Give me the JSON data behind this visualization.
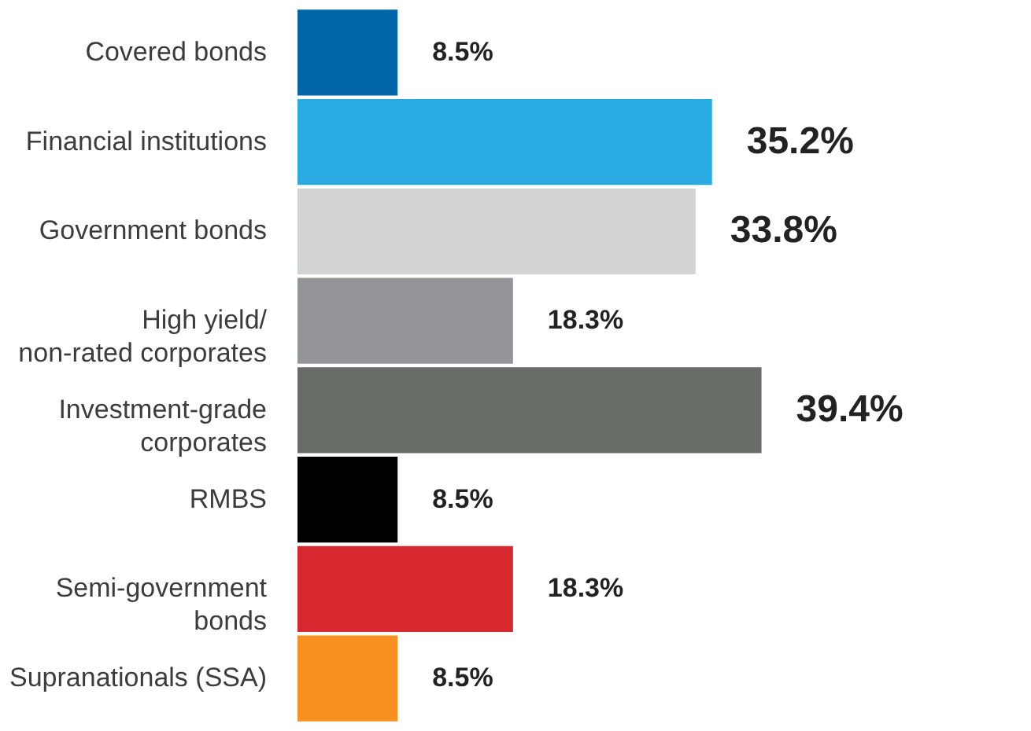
{
  "chart_data": {
    "type": "bar",
    "orientation": "horizontal",
    "categories": [
      "Covered bonds",
      "Financial institutions",
      "Government bonds",
      "High yield/\nnon-rated corporates",
      "Investment-grade\ncorporates",
      "RMBS",
      "Semi-government\nbonds",
      "Supranationals (SSA)"
    ],
    "values": [
      8.5,
      35.2,
      33.8,
      18.3,
      39.4,
      8.5,
      18.3,
      8.5
    ],
    "colors": [
      "#0066a8",
      "#29abe2",
      "#d1d3d4",
      "#939598",
      "#676c66",
      "#000000",
      "#d7282f",
      "#f7901e"
    ],
    "value_labels": [
      "8.5%",
      "35.2%",
      "33.8%",
      "18.3%",
      "39.4%",
      "8.5%",
      "18.3%",
      "8.5%"
    ]
  }
}
